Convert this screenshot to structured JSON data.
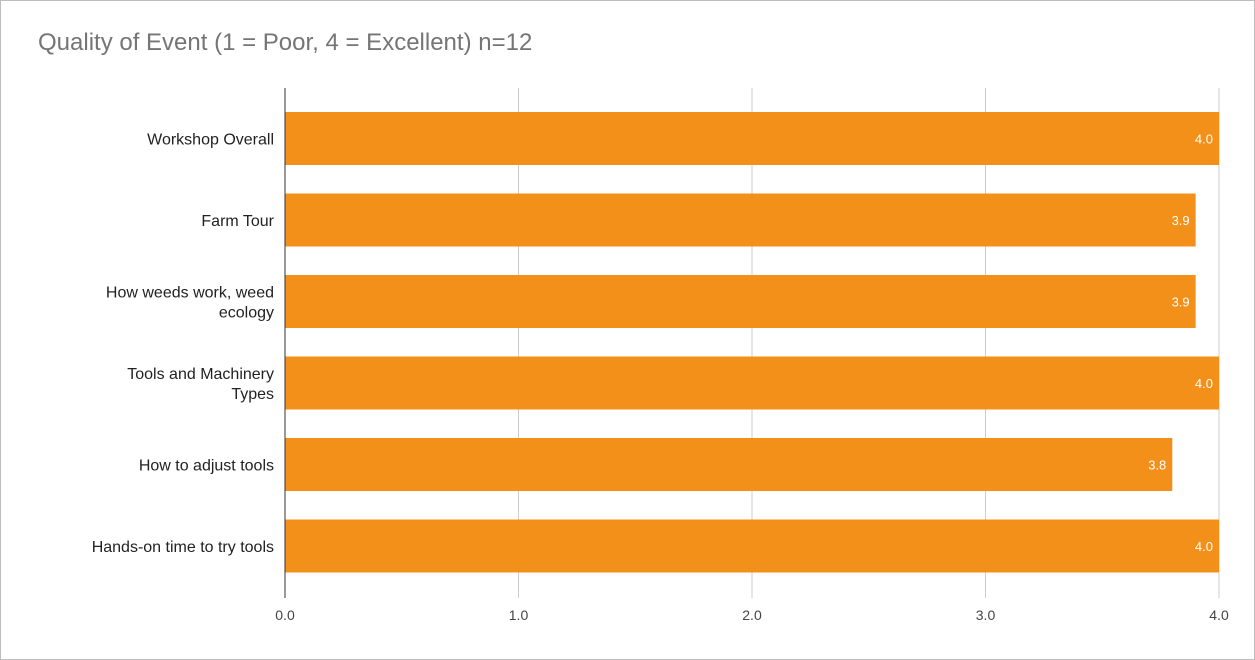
{
  "chart_data": {
    "type": "bar",
    "orientation": "horizontal",
    "title": "Quality of Event (1 = Poor, 4 = Excellent) n=12",
    "categories": [
      [
        "Workshop Overall"
      ],
      [
        "Farm Tour"
      ],
      [
        "How weeds work, weed",
        "ecology"
      ],
      [
        "Tools and Machinery",
        "Types"
      ],
      [
        "How to adjust tools"
      ],
      [
        "Hands-on time to try tools"
      ]
    ],
    "values": [
      4.0,
      3.9,
      3.9,
      4.0,
      3.8,
      4.0
    ],
    "data_labels": [
      "4.0",
      "3.9",
      "3.9",
      "4.0",
      "3.8",
      "4.0"
    ],
    "xlim": [
      0,
      4
    ],
    "xticks": [
      0,
      1,
      2,
      3,
      4
    ],
    "xtick_labels": [
      "0.0",
      "1.0",
      "2.0",
      "3.0",
      "4.0"
    ],
    "bar_color": "#f39019",
    "grid": true,
    "legend": "none"
  }
}
